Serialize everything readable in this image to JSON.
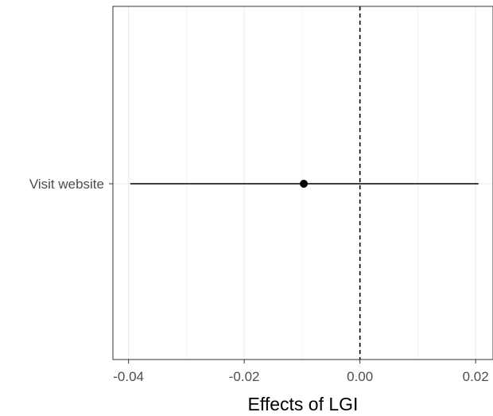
{
  "chart_data": {
    "type": "forest",
    "title": "",
    "xlabel": "Effects of LGI",
    "ylabel": "",
    "xlim": [
      -0.0427,
      0.023
    ],
    "x_ticks": [
      -0.04,
      -0.02,
      0.0,
      0.02
    ],
    "x_tick_labels": [
      "-0.04",
      "-0.02",
      "0.00",
      "0.02"
    ],
    "x_minor_ticks": [
      -0.03,
      -0.01,
      0.01
    ],
    "reference_line": 0,
    "categories": [
      "Visit website"
    ],
    "points": [
      {
        "label": "Visit website",
        "estimate": -0.0097,
        "ci_low": -0.0397,
        "ci_high": 0.0205
      }
    ],
    "grid": true,
    "legend": "none",
    "colors": {
      "point": "#000000",
      "errorbar": "#000000",
      "reference_line": "#000000",
      "gridline": "#ebebeb",
      "panel_border": "#333333",
      "tick_label": "#4d4d4d"
    }
  }
}
